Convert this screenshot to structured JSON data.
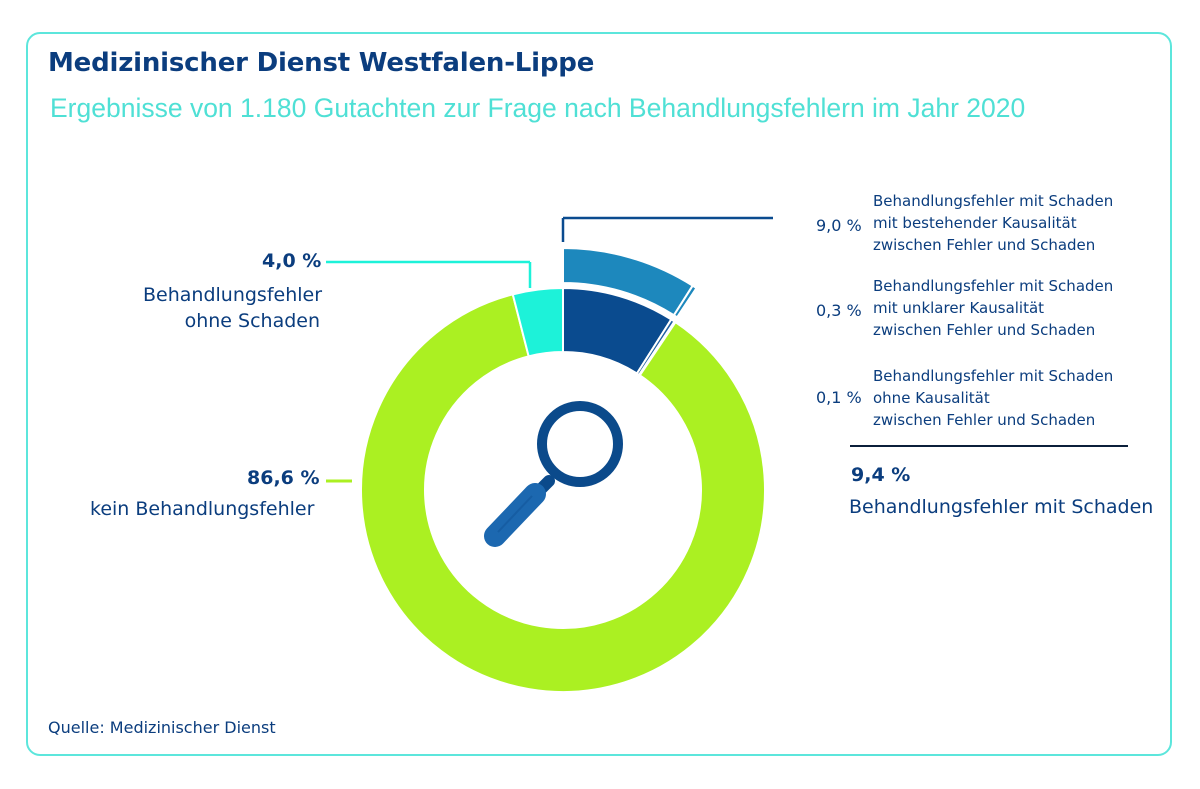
{
  "header": {
    "title": "Medizinischer Dienst Westfalen-Lippe",
    "subtitle": "Ergebnisse von 1.180 Gutachten zur Frage nach Behandlungsfehlern im Jahr 2020"
  },
  "footer": {
    "source": "Quelle: Medizinischer Dienst"
  },
  "colors": {
    "title": "#0b3d7e",
    "subtitle": "#4fe0d5",
    "frame": "#5ce6dc",
    "kein": "#abf022",
    "ohne_schaden": "#1df2d9",
    "mit_schaden_kausal": "#0a4b8f",
    "mit_schaden_unklar": "#1e5fa0",
    "ohne_kausal": "#2e86c1",
    "outer_ring": "#1d88bd",
    "icon": "#0b4a8b"
  },
  "chart_data": {
    "type": "pie",
    "subtype": "donut",
    "title": "Ergebnisse von 1.180 Gutachten zur Frage nach Behandlungsfehlern im Jahr 2020",
    "slices": [
      {
        "label_value": "9,4 %",
        "label": "Behandlungsfehler mit Schaden",
        "value": 9.4
      },
      {
        "label_value": "86,6 %",
        "label": "kein Behandlungsfehler",
        "value": 86.6
      },
      {
        "label_value": "4,0 %",
        "label": "Behandlungsfehler ohne Schaden",
        "label_lines": [
          "Behandlungsfehler",
          "ohne Schaden"
        ],
        "value": 4.0
      }
    ],
    "breakdown": {
      "total_label_value": "9,4 %",
      "total_label": "Behandlungsfehler mit Schaden",
      "items": [
        {
          "label_value": "9,0 %",
          "value": 9.0,
          "lines": [
            "Behandlungsfehler mit Schaden",
            "mit bestehender Kausalität",
            "zwischen Fehler und Schaden"
          ]
        },
        {
          "label_value": "0,3 %",
          "value": 0.3,
          "lines": [
            "Behandlungsfehler mit Schaden",
            "mit unklarer Kausalität",
            "zwischen Fehler und Schaden"
          ]
        },
        {
          "label_value": "0,1 %",
          "value": 0.1,
          "lines": [
            "Behandlungsfehler mit Schaden",
            "ohne Kausalität",
            "zwischen Fehler und Schaden"
          ]
        }
      ]
    }
  }
}
